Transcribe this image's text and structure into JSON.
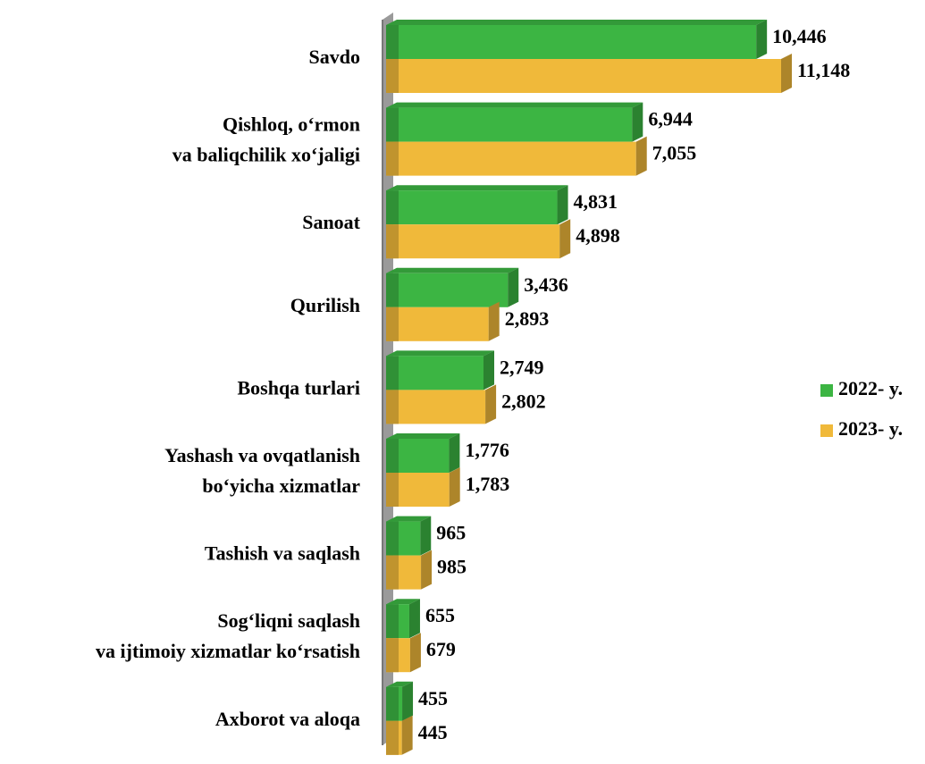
{
  "chart_data": {
    "type": "bar",
    "orientation": "horizontal",
    "categories": [
      [
        "Savdo"
      ],
      [
        "Qishloq, o‘rmon",
        "va baliqchilik xo‘jaligi"
      ],
      [
        "Sanoat"
      ],
      [
        "Qurilish"
      ],
      [
        "Boshqa turlari"
      ],
      [
        "Yashash va ovqatlanish",
        "bo‘yicha xizmatlar"
      ],
      [
        "Tashish va saqlash"
      ],
      [
        "Sog‘liqni saqlash",
        "va ijtimoiy xizmatlar ko‘rsatish"
      ],
      [
        "Axborot va aloqa"
      ]
    ],
    "series": [
      {
        "name": "2022- y.",
        "color": "#3cb543",
        "values": [
          10446,
          6944,
          4831,
          3436,
          2749,
          1776,
          965,
          655,
          455
        ],
        "value_labels": [
          "10,446",
          "6,944",
          "4,831",
          "3,436",
          "2,749",
          "1,776",
          "965",
          "655",
          "455"
        ]
      },
      {
        "name": "2023- y.",
        "color": "#f0b93a",
        "values": [
          11148,
          7055,
          4898,
          2893,
          2802,
          1783,
          985,
          679,
          445
        ],
        "value_labels": [
          "11,148",
          "7,055",
          "4,898",
          "2,893",
          "2,802",
          "1,783",
          "985",
          "679",
          "445"
        ]
      }
    ],
    "legend": "right"
  }
}
